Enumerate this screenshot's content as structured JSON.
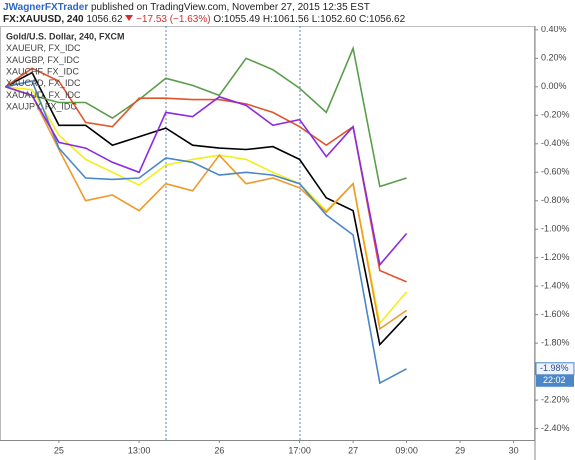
{
  "header": {
    "author": "JWagnerFXTrader",
    "published": "published on TradingView.com, November 27, 2015 12:35 EST",
    "symbol": "FX:XAUUSD, 240",
    "price": "1056.62",
    "change": "−17.53 (−1.63%)",
    "ohlc": "O:1055.49 H:1061.56 L:1052.60 C:1056.62"
  },
  "chart_data": {
    "type": "line",
    "x": [
      0,
      1,
      2,
      3,
      4,
      5,
      6,
      7,
      8,
      9,
      10,
      11,
      12,
      13,
      14,
      15
    ],
    "series": [
      {
        "name": "Gold/U.S. Dollar, 240, FXCM",
        "color": "#000000",
        "values": [
          0,
          0.1,
          -0.27,
          -0.27,
          -0.41,
          -0.35,
          -0.29,
          -0.41,
          -0.43,
          -0.44,
          -0.42,
          -0.51,
          -0.78,
          -0.87,
          -1.81,
          -1.61
        ]
      },
      {
        "name": "XAUEUR, FX_IDC",
        "color": "#5a9e4b",
        "values": [
          0,
          -0.06,
          -0.11,
          -0.11,
          -0.22,
          -0.09,
          0.06,
          0.01,
          -0.06,
          0.2,
          0.12,
          -0.01,
          -0.18,
          0.27,
          -0.7,
          -0.64
        ]
      },
      {
        "name": "XAUGBP, FX_IDC",
        "color": "#e2542a",
        "values": [
          0,
          0.13,
          0.04,
          -0.25,
          -0.28,
          -0.08,
          -0.08,
          -0.09,
          -0.09,
          -0.12,
          -0.18,
          -0.28,
          -0.41,
          -0.28,
          -1.29,
          -1.37
        ]
      },
      {
        "name": "XAUCHF, FX_IDC",
        "color": "#f2ef1a",
        "values": [
          0,
          -0.02,
          -0.34,
          -0.51,
          -0.6,
          -0.69,
          -0.55,
          -0.51,
          -0.48,
          -0.51,
          -0.6,
          -0.68,
          -0.87,
          -0.68,
          -1.66,
          -1.44
        ]
      },
      {
        "name": "XAUCAD, FX_IDC",
        "color": "#ee9a2c",
        "values": [
          0,
          -0.06,
          -0.44,
          -0.8,
          -0.76,
          -0.87,
          -0.68,
          -0.73,
          -0.48,
          -0.68,
          -0.64,
          -0.71,
          -0.88,
          -0.68,
          -1.7,
          -1.57
        ]
      },
      {
        "name": "XAUAUD, FX_IDC",
        "color": "#4a86c8",
        "values": [
          0,
          0.04,
          -0.43,
          -0.64,
          -0.65,
          -0.64,
          -0.5,
          -0.53,
          -0.62,
          -0.6,
          -0.62,
          -0.68,
          -0.9,
          -1.04,
          -2.08,
          -1.98
        ]
      },
      {
        "name": "XAUJPY, FX_IDC",
        "color": "#8a2be2",
        "values": [
          0,
          -0.06,
          -0.39,
          -0.43,
          -0.53,
          -0.6,
          -0.18,
          -0.21,
          -0.07,
          -0.13,
          -0.27,
          -0.23,
          -0.49,
          -0.28,
          -1.25,
          -1.03
        ]
      }
    ],
    "xlim": [
      -0.2,
      19.8
    ],
    "xticks": [
      {
        "value": 2,
        "label": "25"
      },
      {
        "value": 5,
        "label": "13:00"
      },
      {
        "value": 8,
        "label": "26"
      },
      {
        "value": 11,
        "label": "17:00"
      },
      {
        "value": 13,
        "label": "27"
      },
      {
        "value": 15,
        "label": "09:00"
      },
      {
        "value": 17,
        "label": "29"
      },
      {
        "value": 19,
        "label": "30"
      }
    ],
    "ylim": [
      -2.48,
      0.42
    ],
    "yticks": [
      {
        "value": 0.4,
        "label": "0.40%"
      },
      {
        "value": 0.2,
        "label": "0.20%"
      },
      {
        "value": 0,
        "label": "0.00%"
      },
      {
        "value": -0.2,
        "label": "-0.20%"
      },
      {
        "value": -0.4,
        "label": "-0.40%"
      },
      {
        "value": -0.6,
        "label": "-0.60%"
      },
      {
        "value": -0.8,
        "label": "-0.80%"
      },
      {
        "value": -1.0,
        "label": "-1.00%"
      },
      {
        "value": -1.2,
        "label": "-1.20%"
      },
      {
        "value": -1.4,
        "label": "-1.40%"
      },
      {
        "value": -1.6,
        "label": "-1.60%"
      },
      {
        "value": -1.8,
        "label": "-1.80%"
      },
      {
        "value": -2.0,
        "label": "-2.00%"
      },
      {
        "value": -2.2,
        "label": "-2.20%"
      },
      {
        "value": -2.4,
        "label": "-2.40%"
      }
    ],
    "price_label": {
      "value": -1.98,
      "label": "-1.98%"
    },
    "time_label": "22:02",
    "grid": false
  }
}
